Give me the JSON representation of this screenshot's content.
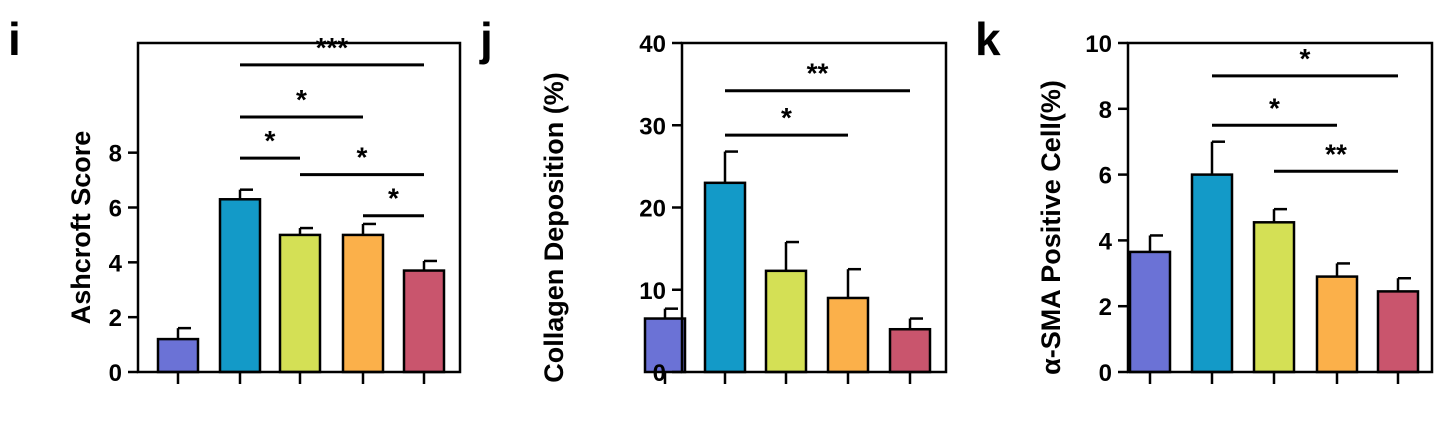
{
  "chart_data": [
    {
      "type": "bar",
      "panel": "i",
      "ylabel": "Ashcroft Score",
      "ylim": [
        0,
        12
      ],
      "yticks": [
        0,
        2,
        4,
        6,
        8
      ],
      "categories": [
        "",
        "",
        "",
        "",
        ""
      ],
      "values": [
        1.2,
        6.3,
        5.0,
        5.0,
        3.7
      ],
      "errors": [
        0.4,
        0.35,
        0.25,
        0.4,
        0.35
      ],
      "colors": [
        "#6b72d6",
        "#139ac8",
        "#d4e055",
        "#fbb04a",
        "#c9556d"
      ],
      "significance": [
        {
          "from": 1,
          "to": 4,
          "label": "***",
          "y": 11.2
        },
        {
          "from": 1,
          "to": 3,
          "label": "*",
          "y": 9.3
        },
        {
          "from": 1,
          "to": 2,
          "label": "*",
          "y": 7.8
        },
        {
          "from": 2,
          "to": 4,
          "label": "*",
          "y": 7.2
        },
        {
          "from": 3,
          "to": 4,
          "label": "*",
          "y": 5.7
        }
      ]
    },
    {
      "type": "bar",
      "panel": "j",
      "ylabel": "Collagen Deposition (%)",
      "ylim": [
        0,
        40
      ],
      "yticks": [
        0,
        10,
        20,
        30,
        40
      ],
      "categories": [
        "",
        "",
        "",
        "",
        ""
      ],
      "values": [
        6.5,
        23.0,
        12.3,
        9.0,
        5.2
      ],
      "errors": [
        1.2,
        3.8,
        3.5,
        3.5,
        1.3
      ],
      "colors": [
        "#6b72d6",
        "#139ac8",
        "#d4e055",
        "#fbb04a",
        "#c9556d"
      ],
      "significance": [
        {
          "from": 1,
          "to": 4,
          "label": "**",
          "y": 34.2
        },
        {
          "from": 1,
          "to": 3,
          "label": "*",
          "y": 28.8
        }
      ]
    },
    {
      "type": "bar",
      "panel": "k",
      "ylabel": "α-SMA Positive Cell(%)",
      "ylim": [
        0,
        10
      ],
      "yticks": [
        0,
        2,
        4,
        6,
        8,
        10
      ],
      "categories": [
        "",
        "",
        "",
        "",
        ""
      ],
      "values": [
        3.65,
        6.0,
        4.55,
        2.9,
        2.45
      ],
      "errors": [
        0.5,
        1.0,
        0.4,
        0.4,
        0.4
      ],
      "colors": [
        "#6b72d6",
        "#139ac8",
        "#d4e055",
        "#fbb04a",
        "#c9556d"
      ],
      "significance": [
        {
          "from": 1,
          "to": 4,
          "label": "*",
          "y": 9.0
        },
        {
          "from": 1,
          "to": 3,
          "label": "*",
          "y": 7.5
        },
        {
          "from": 2,
          "to": 4,
          "label": "**",
          "y": 6.1
        }
      ]
    }
  ]
}
